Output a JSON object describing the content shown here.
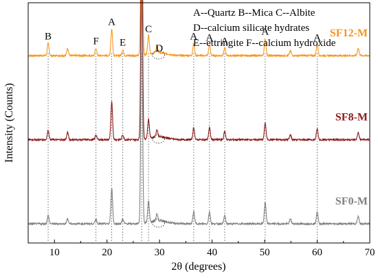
{
  "chart_data": {
    "type": "line",
    "xlabel": "2θ (degrees)",
    "ylabel": "Intensity (Counts)",
    "xlim": [
      5,
      70
    ],
    "x_ticks": [
      10,
      20,
      30,
      40,
      50,
      60,
      70
    ],
    "y_ticks_shown": false,
    "grid": false,
    "legend": [
      "A--Quartz  B--Mica  C--Albite",
      "D--calcium silicate hydrates",
      "E--ettringite   F--calcium hydroxide"
    ],
    "legend_position": "top-right",
    "series": [
      {
        "name": "SF12-M",
        "color": "#F7941D",
        "baseline": 0.78,
        "peaks": [
          {
            "x": 8.8,
            "h": 0.05
          },
          {
            "x": 12.5,
            "h": 0.03
          },
          {
            "x": 17.9,
            "h": 0.03
          },
          {
            "x": 20.9,
            "h": 0.11
          },
          {
            "x": 23.0,
            "h": 0.025
          },
          {
            "x": 26.6,
            "h": 0.73
          },
          {
            "x": 27.9,
            "h": 0.08
          },
          {
            "x": 29.5,
            "h": 0.03
          },
          {
            "x": 36.5,
            "h": 0.05
          },
          {
            "x": 39.5,
            "h": 0.045
          },
          {
            "x": 42.4,
            "h": 0.03
          },
          {
            "x": 50.1,
            "h": 0.07
          },
          {
            "x": 54.9,
            "h": 0.02
          },
          {
            "x": 60.0,
            "h": 0.045
          },
          {
            "x": 67.8,
            "h": 0.03
          }
        ]
      },
      {
        "name": "SF8-M",
        "color": "#8B1A1A",
        "baseline": 0.43,
        "peaks": [
          {
            "x": 8.8,
            "h": 0.04
          },
          {
            "x": 12.5,
            "h": 0.03
          },
          {
            "x": 17.9,
            "h": 0.02
          },
          {
            "x": 20.9,
            "h": 0.16
          },
          {
            "x": 23.0,
            "h": 0.02
          },
          {
            "x": 26.6,
            "h": 0.88
          },
          {
            "x": 27.9,
            "h": 0.08
          },
          {
            "x": 29.5,
            "h": 0.03
          },
          {
            "x": 36.5,
            "h": 0.05
          },
          {
            "x": 39.5,
            "h": 0.05
          },
          {
            "x": 42.4,
            "h": 0.035
          },
          {
            "x": 50.1,
            "h": 0.07
          },
          {
            "x": 54.9,
            "h": 0.02
          },
          {
            "x": 60.0,
            "h": 0.045
          },
          {
            "x": 67.8,
            "h": 0.03
          }
        ]
      },
      {
        "name": "SF0-M",
        "color": "#808080",
        "baseline": 0.08,
        "peaks": [
          {
            "x": 8.8,
            "h": 0.035
          },
          {
            "x": 12.5,
            "h": 0.02
          },
          {
            "x": 17.9,
            "h": 0.02
          },
          {
            "x": 20.9,
            "h": 0.15
          },
          {
            "x": 23.0,
            "h": 0.02
          },
          {
            "x": 26.6,
            "h": 0.95
          },
          {
            "x": 27.9,
            "h": 0.09
          },
          {
            "x": 29.5,
            "h": 0.03
          },
          {
            "x": 36.5,
            "h": 0.05
          },
          {
            "x": 39.5,
            "h": 0.05
          },
          {
            "x": 42.4,
            "h": 0.035
          },
          {
            "x": 50.1,
            "h": 0.09
          },
          {
            "x": 54.9,
            "h": 0.02
          },
          {
            "x": 60.0,
            "h": 0.05
          },
          {
            "x": 67.8,
            "h": 0.03
          }
        ]
      }
    ],
    "phase_markers": [
      {
        "label": "B",
        "x": 8.8,
        "ref_line": true
      },
      {
        "label": "F",
        "x": 17.9,
        "ref_line": true
      },
      {
        "label": "A",
        "x": 20.9,
        "ref_line": true
      },
      {
        "label": "E",
        "x": 23.0,
        "ref_line": true
      },
      {
        "label": "A",
        "x": 26.6,
        "ref_line": true
      },
      {
        "label": "C",
        "x": 27.9,
        "ref_line": true
      },
      {
        "label": "D",
        "x": 29.8,
        "ref_line": false
      },
      {
        "label": "A",
        "x": 36.5,
        "ref_line": true
      },
      {
        "label": "A",
        "x": 39.5,
        "ref_line": true
      },
      {
        "label": "A",
        "x": 42.4,
        "ref_line": true
      },
      {
        "label": "A",
        "x": 50.1,
        "ref_line": true
      },
      {
        "label": "A",
        "x": 60.0,
        "ref_line": true
      }
    ],
    "highlight_x": 29.8
  }
}
